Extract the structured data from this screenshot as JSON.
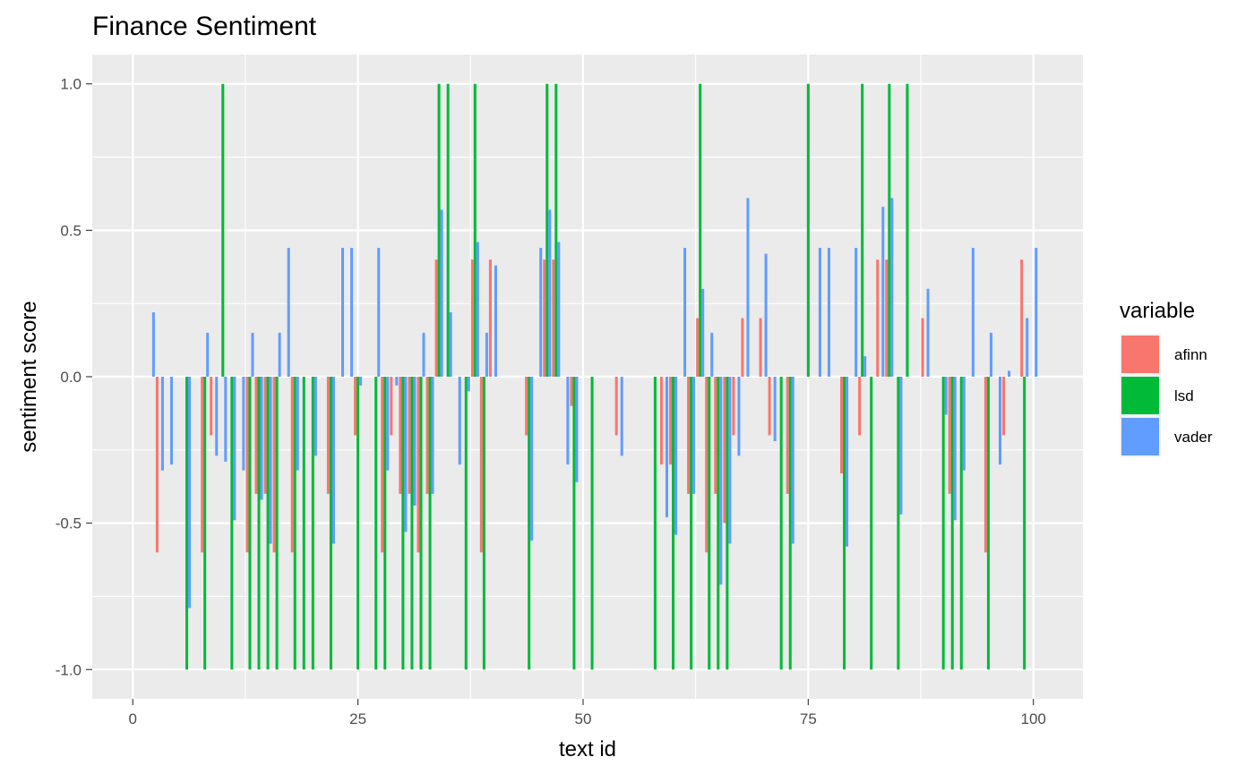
{
  "chart_data": {
    "type": "bar",
    "title": "Finance Sentiment",
    "xlabel": "text id",
    "ylabel": "sentiment score",
    "xlim": [
      -4.5,
      105.5
    ],
    "ylim": [
      -1.1,
      1.1
    ],
    "x_ticks": [
      0,
      25,
      50,
      75,
      100
    ],
    "y_ticks": [
      -1.0,
      -0.5,
      0.0,
      0.5,
      1.0
    ],
    "y_tick_labels": [
      "-1.0",
      "-0.5",
      "0.0",
      "0.5",
      "1.0"
    ],
    "grid": true,
    "legend": {
      "title": "variable",
      "position": "right"
    },
    "series": [
      {
        "name": "afinn",
        "color": "#F8766D",
        "points": [
          [
            3,
            -0.6
          ],
          [
            8,
            -0.6
          ],
          [
            9,
            -0.2
          ],
          [
            13,
            -0.6
          ],
          [
            14,
            -0.4
          ],
          [
            15,
            -0.4
          ],
          [
            16,
            -0.6
          ],
          [
            18,
            -0.6
          ],
          [
            22,
            -0.4
          ],
          [
            25,
            -0.2
          ],
          [
            28,
            -0.6
          ],
          [
            29,
            -0.2
          ],
          [
            30,
            -0.4
          ],
          [
            31,
            -0.4
          ],
          [
            32,
            -0.6
          ],
          [
            33,
            -0.4
          ],
          [
            34,
            0.4
          ],
          [
            38,
            0.4
          ],
          [
            39,
            -0.6
          ],
          [
            40,
            0.4
          ],
          [
            44,
            -0.2
          ],
          [
            46,
            0.4
          ],
          [
            47,
            0.4
          ],
          [
            49,
            -0.1
          ],
          [
            54,
            -0.2
          ],
          [
            59,
            -0.3
          ],
          [
            60,
            -0.3
          ],
          [
            62,
            -0.4
          ],
          [
            63,
            0.2
          ],
          [
            64,
            -0.6
          ],
          [
            65,
            -0.4
          ],
          [
            66,
            -0.5
          ],
          [
            67,
            -0.2
          ],
          [
            68,
            0.2
          ],
          [
            70,
            0.2
          ],
          [
            71,
            -0.2
          ],
          [
            73,
            -0.4
          ],
          [
            79,
            -0.33
          ],
          [
            81,
            -0.2
          ],
          [
            83,
            0.4
          ],
          [
            84,
            0.4
          ],
          [
            88,
            0.2
          ],
          [
            91,
            -0.4
          ],
          [
            95,
            -0.6
          ],
          [
            97,
            -0.2
          ],
          [
            99,
            0.4
          ]
        ]
      },
      {
        "name": "lsd",
        "color": "#00BA38",
        "points": [
          [
            6,
            -1
          ],
          [
            8,
            -1
          ],
          [
            10,
            1
          ],
          [
            11,
            -1
          ],
          [
            13,
            -1
          ],
          [
            14,
            -1
          ],
          [
            15,
            -1
          ],
          [
            16,
            -1
          ],
          [
            18,
            -1
          ],
          [
            19,
            -1
          ],
          [
            20,
            -1
          ],
          [
            22,
            -1
          ],
          [
            25,
            -1
          ],
          [
            27,
            -1
          ],
          [
            28,
            -1
          ],
          [
            30,
            -1
          ],
          [
            31,
            -1
          ],
          [
            32,
            -1
          ],
          [
            33,
            -1
          ],
          [
            34,
            1
          ],
          [
            35,
            1
          ],
          [
            37,
            -1
          ],
          [
            38,
            1
          ],
          [
            39,
            -1
          ],
          [
            44,
            -1
          ],
          [
            46,
            1
          ],
          [
            47,
            1
          ],
          [
            49,
            -1
          ],
          [
            51,
            -1
          ],
          [
            58,
            -1
          ],
          [
            60,
            -1
          ],
          [
            62,
            -1
          ],
          [
            63,
            1
          ],
          [
            64,
            -1
          ],
          [
            65,
            -1
          ],
          [
            66,
            -1
          ],
          [
            72,
            -1
          ],
          [
            73,
            -1
          ],
          [
            75,
            1
          ],
          [
            79,
            -1
          ],
          [
            81,
            1
          ],
          [
            82,
            -1
          ],
          [
            84,
            1
          ],
          [
            85,
            -1
          ],
          [
            86,
            1
          ],
          [
            90,
            -1
          ],
          [
            91,
            -1
          ],
          [
            92,
            -1
          ],
          [
            95,
            -1
          ],
          [
            99,
            -1
          ]
        ]
      },
      {
        "name": "vader",
        "color": "#619CFF",
        "points": [
          [
            2,
            0.22
          ],
          [
            3,
            -0.32
          ],
          [
            4,
            -0.3
          ],
          [
            6,
            -0.79
          ],
          [
            8,
            0.15
          ],
          [
            9,
            -0.27
          ],
          [
            10,
            -0.29
          ],
          [
            11,
            -0.49
          ],
          [
            12,
            -0.32
          ],
          [
            13,
            0.15
          ],
          [
            14,
            -0.42
          ],
          [
            15,
            -0.57
          ],
          [
            16,
            0.15
          ],
          [
            17,
            0.44
          ],
          [
            18,
            -0.32
          ],
          [
            20,
            -0.27
          ],
          [
            22,
            -0.57
          ],
          [
            23,
            0.44
          ],
          [
            24,
            0.44
          ],
          [
            25,
            -0.03
          ],
          [
            27,
            0.44
          ],
          [
            28,
            -0.32
          ],
          [
            29,
            -0.03
          ],
          [
            30,
            -0.53
          ],
          [
            31,
            -0.44
          ],
          [
            32,
            0.15
          ],
          [
            33,
            -0.4
          ],
          [
            34,
            0.57
          ],
          [
            35,
            0.22
          ],
          [
            36,
            -0.3
          ],
          [
            37,
            -0.05
          ],
          [
            38,
            0.46
          ],
          [
            39,
            0.15
          ],
          [
            40,
            0.38
          ],
          [
            44,
            -0.56
          ],
          [
            45,
            0.44
          ],
          [
            46,
            0.57
          ],
          [
            47,
            0.46
          ],
          [
            48,
            -0.3
          ],
          [
            49,
            -0.36
          ],
          [
            54,
            -0.27
          ],
          [
            59,
            -0.48
          ],
          [
            60,
            -0.54
          ],
          [
            61,
            0.44
          ],
          [
            62,
            -0.4
          ],
          [
            63,
            0.3
          ],
          [
            64,
            0.15
          ],
          [
            65,
            -0.71
          ],
          [
            66,
            -0.57
          ],
          [
            67,
            -0.27
          ],
          [
            68,
            0.61
          ],
          [
            70,
            0.42
          ],
          [
            71,
            -0.22
          ],
          [
            73,
            -0.57
          ],
          [
            76,
            0.44
          ],
          [
            77,
            0.44
          ],
          [
            79,
            -0.58
          ],
          [
            80,
            0.44
          ],
          [
            81,
            0.07
          ],
          [
            83,
            0.58
          ],
          [
            84,
            0.61
          ],
          [
            85,
            -0.47
          ],
          [
            88,
            0.3
          ],
          [
            90,
            -0.13
          ],
          [
            91,
            -0.49
          ],
          [
            92,
            -0.32
          ],
          [
            93,
            0.44
          ],
          [
            95,
            0.15
          ],
          [
            96,
            -0.3
          ],
          [
            97,
            0.02
          ],
          [
            99,
            0.2
          ],
          [
            100,
            0.44
          ]
        ]
      }
    ]
  }
}
